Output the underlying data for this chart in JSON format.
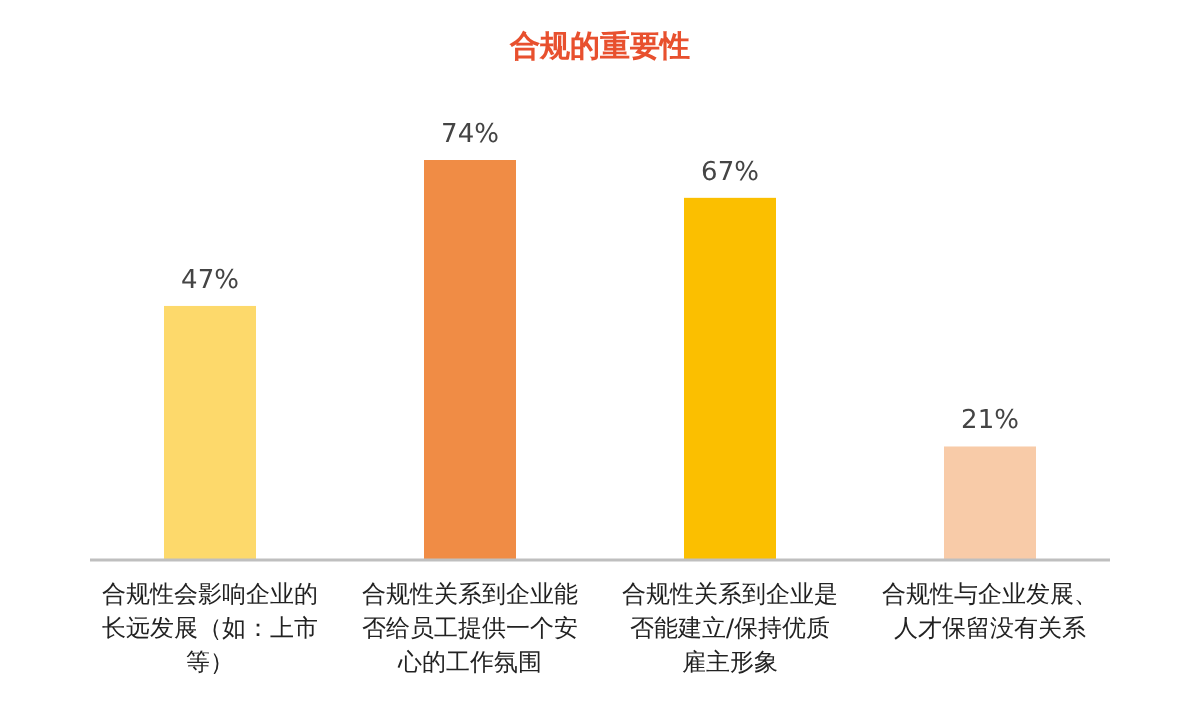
{
  "chart_data": {
    "type": "bar",
    "title": "合规的重要性",
    "categories": [
      "合规性会影响企业的长远发展（如：上市等）",
      "合规性关系到企业能否给员工提供一个安心的工作氛围",
      "合规性关系到企业是否能建立/保持优质雇主形象",
      "合规性与企业发展、人才保留没有关系"
    ],
    "values": [
      47,
      74,
      67,
      21
    ],
    "value_labels": [
      "47%",
      "74%",
      "67%",
      "21%"
    ],
    "colors": [
      "#fdd96b",
      "#f08c45",
      "#fbbf00",
      "#f8cba8"
    ]
  }
}
